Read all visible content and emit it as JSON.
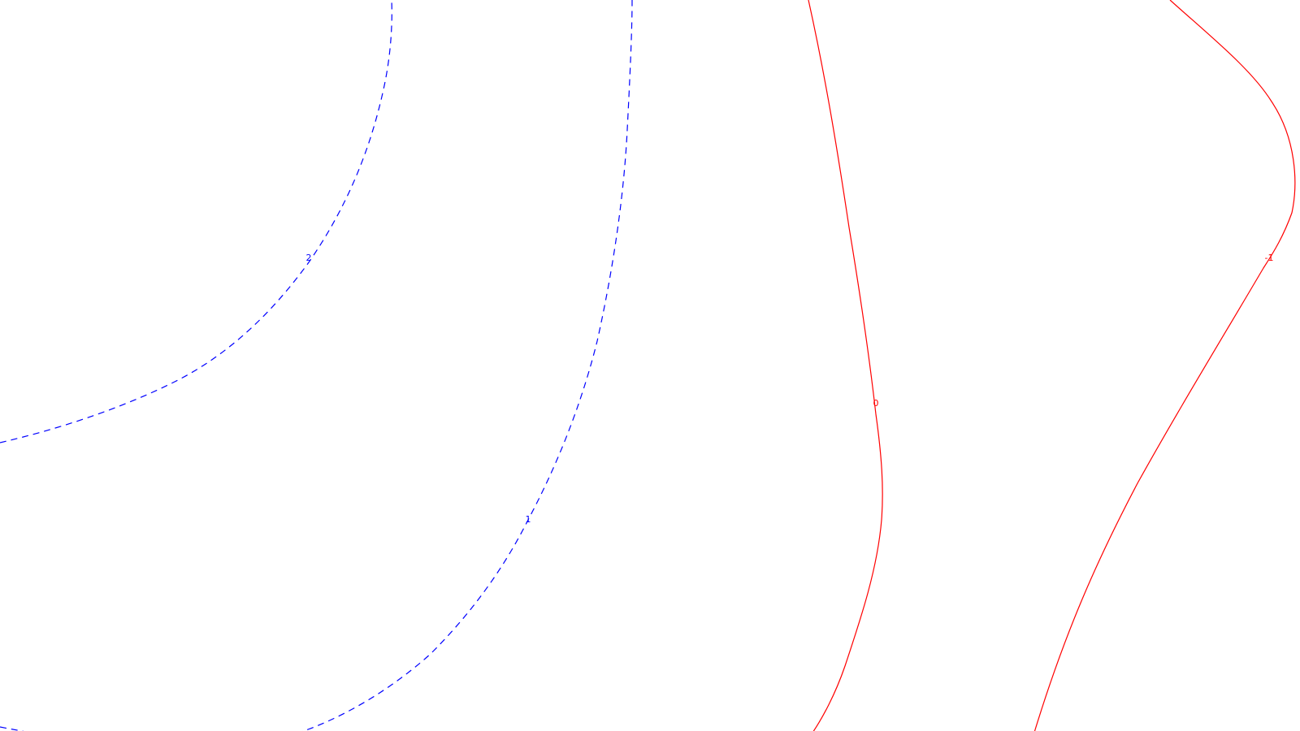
{
  "chart_data": {
    "type": "contour",
    "title": "",
    "xlabel": "",
    "ylabel": "",
    "grid": false,
    "colors": {
      "positive": "#0000ff",
      "negative": "#ff0000",
      "zero": "#ff0000"
    },
    "levels": [
      {
        "value": 2,
        "label": "2",
        "style": "dashed",
        "color": "#0000ff"
      },
      {
        "value": 1,
        "label": "1",
        "style": "dashed",
        "color": "#0000ff"
      },
      {
        "value": 0,
        "label": "0",
        "style": "solid",
        "color": "#ff0000"
      },
      {
        "value": -1,
        "label": "-1",
        "style": "solid",
        "color": "#ff0000"
      }
    ]
  }
}
